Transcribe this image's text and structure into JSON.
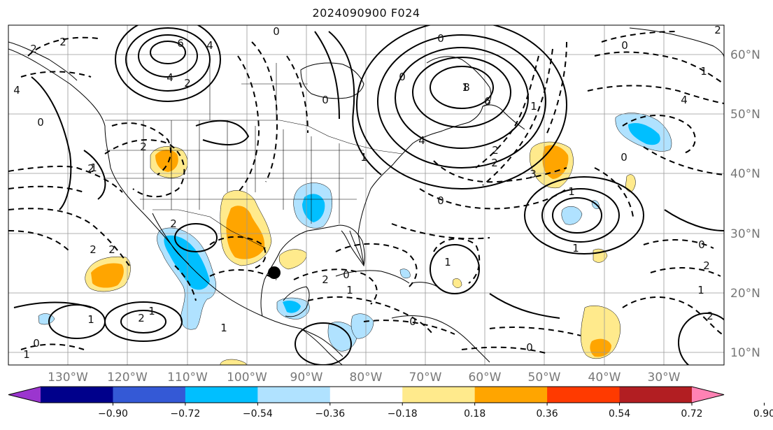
{
  "title": "2024090900 F024",
  "latitude_labels": [
    "60°N",
    "50°N",
    "40°N",
    "30°N",
    "20°N",
    "10°N"
  ],
  "longitude_labels": [
    "130°W",
    "120°W",
    "110°W",
    "100°W",
    "90°W",
    "80°W",
    "70°W",
    "60°W",
    "50°W",
    "40°W",
    "30°W"
  ],
  "colorbar": {
    "tick_labels": [
      "−0.90",
      "−0.72",
      "−0.54",
      "−0.36",
      "−0.18",
      "0.18",
      "0.36",
      "0.54",
      "0.72",
      "0.90"
    ],
    "colors": [
      "#9b35cf",
      "#00008b",
      "#3459d6",
      "#00bfff",
      "#b0e2ff",
      "#ffffff",
      "#ffea8c",
      "#ffa500",
      "#ff3a00",
      "#b21e22",
      "#ff82b4"
    ]
  },
  "contour_labels": [
    "2",
    "2",
    "4",
    "6",
    "4",
    "2",
    "1",
    "4",
    "8",
    "6",
    "4",
    "2",
    "1",
    "0",
    "1",
    "2",
    "0",
    "2",
    "2",
    "2",
    "1",
    "1",
    "2",
    "1",
    "0",
    "0",
    "1",
    "0",
    "0",
    "1",
    "2",
    "1",
    "4",
    "0",
    "2",
    "0",
    "0",
    "3",
    "1",
    "1",
    "0",
    "0",
    "2",
    "1",
    "0",
    "1",
    "0",
    "1",
    "2",
    "2",
    "2"
  ],
  "marker": "storm-center-dot"
}
